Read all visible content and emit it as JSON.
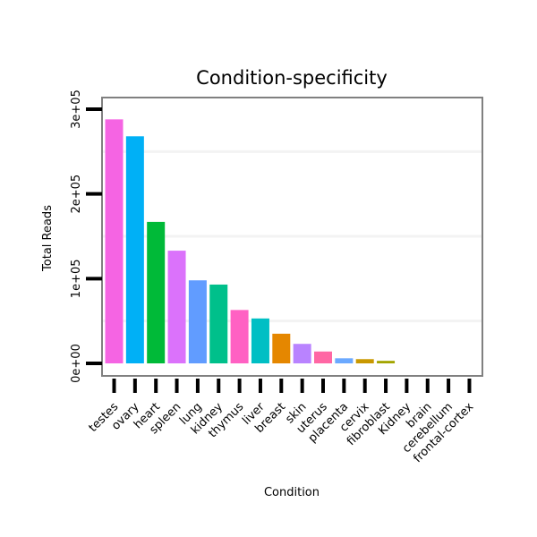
{
  "chart_data": {
    "type": "bar",
    "title": "Condition-specificity",
    "xlabel": "Condition",
    "ylabel": "Total Reads",
    "ylim": [
      0,
      300000
    ],
    "y_ticks": [
      0,
      100000,
      200000,
      300000
    ],
    "y_tick_labels": [
      "0e+00",
      "1e+05",
      "2e+05",
      "3e+05"
    ],
    "grid": true,
    "legend": "none",
    "categories": [
      "testes",
      "ovary",
      "heart",
      "spleen",
      "lung",
      "kidney",
      "thymus",
      "liver",
      "breast",
      "skin",
      "uterus",
      "placenta",
      "cervix",
      "fibroblast",
      "Kidney",
      "brain",
      "cerebellum",
      "frontal-cortex"
    ],
    "values": [
      288000,
      268000,
      167000,
      133000,
      98000,
      93000,
      63000,
      53000,
      35000,
      23000,
      14000,
      6000,
      5000,
      3000,
      0,
      0,
      0,
      0
    ],
    "colors": [
      "#F564E3",
      "#00B0F6",
      "#00BA38",
      "#DB72FB",
      "#619CFF",
      "#00C08B",
      "#FF61C3",
      "#00BFC4",
      "#E58700",
      "#B983FF",
      "#FF67A4",
      "#6BA9FF",
      "#C99800",
      "#A3A500",
      "#F8766D",
      "#7CAE00",
      "#00BCD8",
      "#8D8FE6"
    ]
  }
}
